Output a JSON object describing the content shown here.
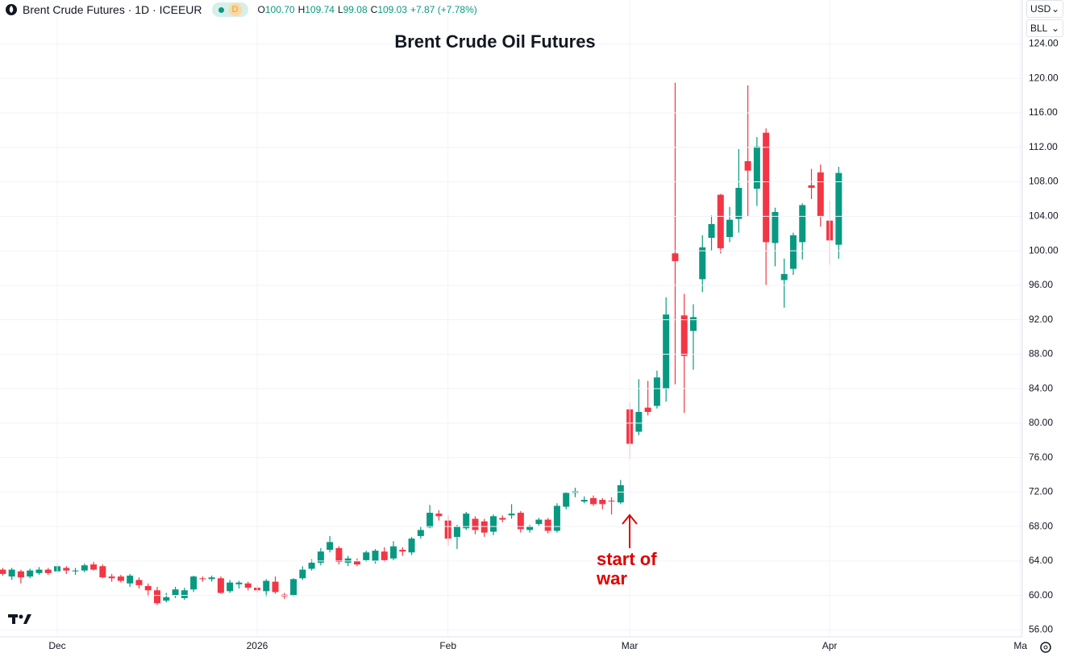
{
  "header": {
    "symbol": "Brent Crude Futures · 1D · ICEEUR",
    "badge": "D",
    "ohlc": [
      {
        "label": "O",
        "value": "100.70"
      },
      {
        "label": "H",
        "value": "109.74"
      },
      {
        "label": "L",
        "value": "99.08"
      },
      {
        "label": "C",
        "value": "109.03"
      }
    ],
    "change": "+7.87 (+7.78%)",
    "currency": "USD",
    "unit": "BLL"
  },
  "chart_data": {
    "type": "candlestick",
    "title": "Brent Crude Oil Futures",
    "up_color": "#089981",
    "down_color": "#f23645",
    "grid": true,
    "open": [
      63.0,
      62.2,
      62.8,
      62.2,
      62.6,
      63.0,
      62.8,
      63.2,
      62.8,
      62.9,
      63.6,
      63.4,
      62.2,
      62.2,
      61.4,
      61.8,
      61.1,
      60.6,
      59.4,
      60.0,
      59.7,
      60.7,
      62.0,
      61.9,
      62.0,
      60.5,
      61.3,
      61.4,
      60.9,
      60.5,
      61.6,
      60.1,
      60.0,
      62.0,
      63.1,
      63.8,
      65.3,
      65.5,
      63.8,
      64.0,
      64.1,
      64.0,
      65.1,
      64.3,
      65.3,
      65.0,
      66.9,
      67.9,
      69.5,
      68.7,
      66.8,
      67.8,
      68.9,
      68.6,
      67.4,
      69.0,
      69.3,
      69.6,
      67.6,
      68.3,
      68.8,
      67.5,
      70.3,
      71.9,
      70.9,
      71.3,
      71.1,
      71.0,
      70.8,
      81.6,
      79.0,
      81.8,
      82.0,
      84.0,
      99.7,
      92.5,
      90.7,
      96.7,
      101.5,
      106.5,
      101.6,
      103.7,
      110.4,
      107.2,
      113.7,
      100.9,
      96.6,
      97.9,
      101.0,
      107.6,
      109.1,
      103.5,
      100.7
    ],
    "high": [
      63.2,
      63.2,
      63.0,
      63.1,
      63.3,
      63.2,
      63.8,
      63.4,
      63.2,
      63.7,
      63.9,
      63.6,
      62.5,
      62.4,
      62.5,
      62.1,
      61.4,
      61.0,
      60.3,
      61.0,
      60.9,
      62.3,
      62.2,
      62.3,
      62.2,
      61.8,
      61.7,
      61.6,
      61.2,
      61.9,
      62.2,
      60.3,
      62.0,
      63.4,
      64.2,
      65.5,
      66.9,
      65.7,
      64.6,
      64.3,
      65.2,
      65.4,
      65.6,
      66.3,
      65.6,
      66.8,
      68.0,
      70.5,
      69.9,
      69.3,
      68.2,
      69.7,
      69.2,
      68.9,
      69.4,
      69.3,
      70.6,
      69.8,
      68.2,
      69.0,
      69.0,
      70.7,
      72.0,
      72.5,
      71.5,
      71.6,
      71.3,
      71.4,
      73.4,
      82.4,
      85.1,
      84.9,
      86.1,
      94.6,
      119.5,
      95.0,
      93.8,
      101.8,
      104.1,
      106.6,
      105.1,
      111.8,
      119.2,
      113.2,
      114.2,
      105.0,
      99.1,
      102.1,
      105.5,
      109.5,
      110.0,
      105.8,
      109.74
    ],
    "low": [
      62.3,
      61.8,
      61.4,
      62.0,
      62.4,
      62.4,
      62.6,
      62.5,
      62.4,
      62.7,
      62.9,
      62.0,
      61.6,
      61.5,
      61.0,
      60.8,
      59.9,
      58.9,
      59.2,
      59.7,
      59.5,
      60.4,
      61.6,
      61.6,
      60.2,
      60.3,
      60.8,
      60.6,
      60.3,
      59.9,
      60.2,
      59.6,
      59.9,
      61.8,
      62.9,
      63.5,
      65.0,
      63.6,
      63.4,
      63.4,
      63.9,
      63.7,
      63.9,
      64.1,
      64.6,
      64.7,
      66.6,
      67.8,
      68.7,
      65.8,
      65.4,
      67.6,
      67.1,
      66.8,
      67.0,
      68.5,
      68.9,
      67.3,
      67.3,
      68.1,
      67.2,
      67.3,
      70.0,
      71.4,
      70.7,
      70.4,
      70.0,
      69.4,
      70.6,
      75.8,
      78.6,
      80.9,
      81.7,
      82.5,
      84.5,
      81.2,
      86.2,
      95.2,
      100.0,
      99.7,
      101.0,
      102.1,
      104.0,
      105.2,
      96.0,
      98.2,
      93.4,
      97.2,
      99.0,
      106.0,
      102.8,
      98.4,
      99.08
    ],
    "close": [
      62.5,
      63.0,
      62.1,
      62.9,
      63.0,
      62.6,
      63.4,
      62.9,
      62.9,
      63.5,
      63.0,
      62.1,
      62.0,
      61.7,
      62.3,
      61.2,
      60.6,
      59.1,
      59.8,
      60.7,
      60.6,
      62.2,
      61.9,
      62.1,
      60.3,
      61.5,
      61.5,
      60.9,
      60.6,
      61.7,
      60.4,
      59.9,
      61.9,
      63.0,
      63.8,
      65.1,
      66.2,
      63.9,
      64.3,
      63.6,
      65.0,
      65.2,
      64.1,
      65.7,
      65.1,
      66.6,
      67.6,
      69.6,
      69.2,
      66.6,
      68.0,
      69.5,
      67.6,
      67.3,
      69.2,
      68.8,
      69.5,
      67.7,
      68.0,
      68.8,
      67.5,
      70.4,
      71.9,
      72.1,
      71.1,
      70.6,
      70.6,
      70.9,
      72.8,
      77.6,
      81.3,
      81.3,
      85.3,
      92.6,
      98.8,
      87.8,
      92.3,
      100.4,
      103.1,
      100.3,
      103.6,
      107.3,
      109.3,
      112.1,
      101.0,
      104.5,
      97.3,
      101.8,
      105.3,
      107.3,
      104.0,
      101.2,
      109.03
    ],
    "xlim": [
      -0.3,
      112.2
    ],
    "xticks": [
      {
        "value": 6,
        "label": "Dec"
      },
      {
        "value": 28,
        "label": "2026"
      },
      {
        "value": 49,
        "label": "Feb"
      },
      {
        "value": 69,
        "label": "Mar"
      },
      {
        "value": 91,
        "label": "Apr"
      },
      {
        "value": 112,
        "label": "Ma"
      }
    ],
    "ylim": [
      55.2,
      129.1
    ],
    "yticks": [
      {
        "value": 56,
        "label": "56.00"
      },
      {
        "value": 60,
        "label": "60.00"
      },
      {
        "value": 64,
        "label": "64.00"
      },
      {
        "value": 68,
        "label": "68.00"
      },
      {
        "value": 72,
        "label": "72.00"
      },
      {
        "value": 76,
        "label": "76.00"
      },
      {
        "value": 80,
        "label": "80.00"
      },
      {
        "value": 84,
        "label": "84.00"
      },
      {
        "value": 88,
        "label": "88.00"
      },
      {
        "value": 92,
        "label": "92.00"
      },
      {
        "value": 96,
        "label": "96.00"
      },
      {
        "value": 100,
        "label": "100.00"
      },
      {
        "value": 104,
        "label": "104.00"
      },
      {
        "value": 108,
        "label": "108.00"
      },
      {
        "value": 112,
        "label": "112.00"
      },
      {
        "value": 116,
        "label": "116.00"
      },
      {
        "value": 120,
        "label": "120.00"
      },
      {
        "value": 124,
        "label": "124.00"
      }
    ],
    "annotation": {
      "text": "start of war",
      "x": 69,
      "y": 69.5
    }
  }
}
